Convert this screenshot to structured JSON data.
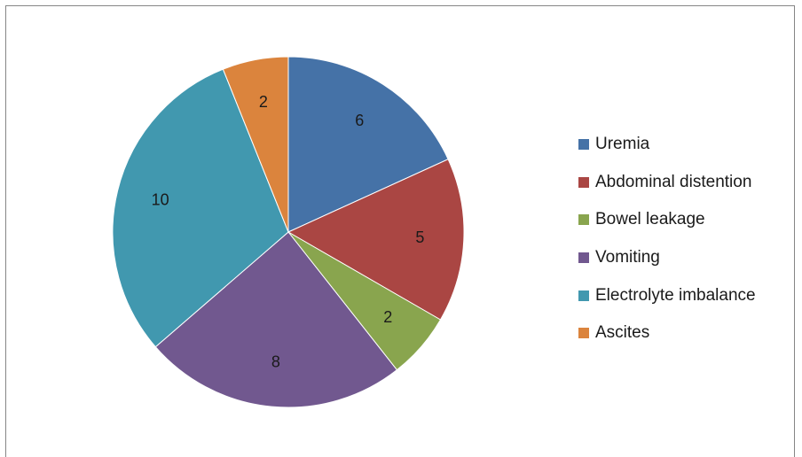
{
  "chart_data": {
    "type": "pie",
    "categories": [
      "Uremia",
      "Abdominal distention",
      "Bowel leakage",
      "Vomiting",
      "Electrolyte imbalance",
      "Ascites"
    ],
    "values": [
      6,
      5,
      2,
      8,
      10,
      2
    ],
    "colors": [
      "#4572A7",
      "#AA4643",
      "#89A54E",
      "#71588F",
      "#4198AF",
      "#DB843D"
    ],
    "title": "",
    "legend_position": "right",
    "start_angle": "12 o'clock, clockwise"
  }
}
